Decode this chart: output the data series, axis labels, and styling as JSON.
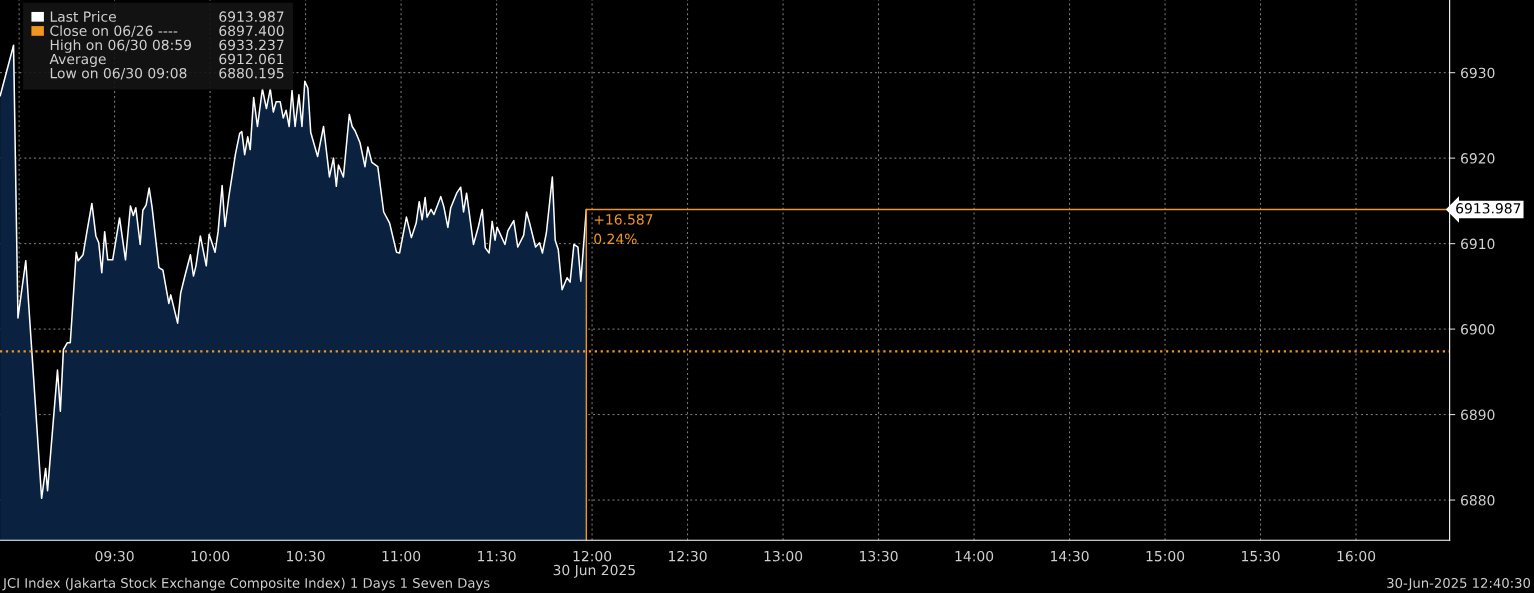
{
  "chart_data": {
    "type": "area",
    "xlabel": "30 Jun 2025",
    "x": [
      8.901,
      8.971,
      8.994,
      9.035,
      9.118,
      9.139,
      9.149,
      9.201,
      9.216,
      9.232,
      9.252,
      9.268,
      9.299,
      9.309,
      9.335,
      9.353,
      9.381,
      9.402,
      9.417,
      9.433,
      9.448,
      9.464,
      9.49,
      9.526,
      9.557,
      9.583,
      9.598,
      9.611,
      9.634,
      9.648,
      9.665,
      9.681,
      9.696,
      9.732,
      9.753,
      9.784,
      9.794,
      9.83,
      9.846,
      9.869,
      9.897,
      9.913,
      9.926,
      9.949,
      9.98,
      9.995,
      10.026,
      10.042,
      10.063,
      10.078,
      10.099,
      10.133,
      10.155,
      10.166,
      10.181,
      10.197,
      10.21,
      10.228,
      10.248,
      10.274,
      10.295,
      10.315,
      10.331,
      10.346,
      10.367,
      10.383,
      10.398,
      10.414,
      10.429,
      10.445,
      10.465,
      10.481,
      10.496,
      10.512,
      10.527,
      10.563,
      10.594,
      10.625,
      10.646,
      10.661,
      10.672,
      10.698,
      10.729,
      10.744,
      10.759,
      10.785,
      10.811,
      10.826,
      10.847,
      10.878,
      10.909,
      10.94,
      10.976,
      10.992,
      11.028,
      11.054,
      11.079,
      11.095,
      11.11,
      11.126,
      11.136,
      11.157,
      11.172,
      11.208,
      11.224,
      11.245,
      11.26,
      11.291,
      11.312,
      11.327,
      11.343,
      11.379,
      11.405,
      11.425,
      11.441,
      11.461,
      11.477,
      11.492,
      11.503,
      11.544,
      11.559,
      11.59,
      11.611,
      11.642,
      11.657,
      11.673,
      11.704,
      11.725,
      11.74,
      11.761,
      11.792,
      11.807,
      11.823,
      11.843,
      11.869,
      11.885,
      11.905,
      11.926,
      11.941,
      11.97
    ],
    "series": [
      {
        "name": "Last Price",
        "color": "#0a2240",
        "values": [
          6927.3,
          6933.2,
          6901.3,
          6908.0,
          6880.2,
          6883.7,
          6881.1,
          6895.2,
          6890.4,
          6897.6,
          6898.4,
          6898.4,
          6909.0,
          6908.0,
          6908.7,
          6911.1,
          6914.7,
          6910.9,
          6910.1,
          6906.6,
          6911.4,
          6908.1,
          6908.1,
          6913.0,
          6908.1,
          6914.4,
          6913.3,
          6914.2,
          6909.9,
          6913.9,
          6914.5,
          6916.5,
          6914.3,
          6907.2,
          6906.9,
          6903.0,
          6904.0,
          6900.7,
          6904.2,
          6906.3,
          6908.7,
          6906.2,
          6907.4,
          6910.9,
          6907.4,
          6911.1,
          6909.0,
          6911.4,
          6916.8,
          6912.0,
          6915.6,
          6920.5,
          6922.9,
          6923.1,
          6920.4,
          6922.5,
          6921.0,
          6927.1,
          6923.7,
          6928.1,
          6925.8,
          6928.1,
          6925.4,
          6926.6,
          6926.6,
          6924.7,
          6925.6,
          6923.7,
          6927.9,
          6923.7,
          6927.4,
          6923.7,
          6929.0,
          6928.2,
          6923.0,
          6920.2,
          6923.7,
          6917.8,
          6920.0,
          6916.7,
          6919.2,
          6917.8,
          6925.1,
          6923.7,
          6923.2,
          6921.8,
          6919.0,
          6921.3,
          6919.5,
          6919.0,
          6913.7,
          6912.4,
          6909.0,
          6908.9,
          6913.1,
          6910.7,
          6912.4,
          6914.9,
          6912.8,
          6915.4,
          6913.1,
          6914.0,
          6913.4,
          6915.5,
          6914.3,
          6911.9,
          6914.2,
          6915.9,
          6916.6,
          6913.7,
          6915.9,
          6909.9,
          6912.0,
          6914.0,
          6909.5,
          6908.9,
          6912.6,
          6910.4,
          6911.9,
          6909.9,
          6911.5,
          6912.7,
          6909.6,
          6911.0,
          6913.7,
          6912.4,
          6909.6,
          6910.1,
          6908.9,
          6911.3,
          6917.8,
          6910.4,
          6909.3,
          6904.6,
          6906.0,
          6905.5,
          6909.9,
          6909.6,
          6905.6,
          6914.0
        ]
      }
    ],
    "xlim": [
      8.9,
      16.49
    ],
    "xticks": [
      {
        "value": 9.0,
        "label": null
      },
      {
        "value": 9.5,
        "label": "09:30"
      },
      {
        "value": 10.0,
        "label": "10:00"
      },
      {
        "value": 10.5,
        "label": "10:30"
      },
      {
        "value": 11.0,
        "label": "11:00"
      },
      {
        "value": 11.5,
        "label": "11:30"
      },
      {
        "value": 12.0,
        "label": "12:00"
      },
      {
        "value": 12.5,
        "label": "12:30"
      },
      {
        "value": 13.0,
        "label": "13:00"
      },
      {
        "value": 13.5,
        "label": "13:30"
      },
      {
        "value": 14.0,
        "label": "14:00"
      },
      {
        "value": 14.5,
        "label": "14:30"
      },
      {
        "value": 15.0,
        "label": "15:00"
      },
      {
        "value": 15.5,
        "label": "15:30"
      },
      {
        "value": 16.0,
        "label": "16:00"
      }
    ],
    "ylim": [
      6875.3,
      6938.5
    ],
    "yticks": [
      6880,
      6890,
      6900,
      6910,
      6920,
      6930
    ],
    "grid": true,
    "legend": "top left",
    "ref_lines": [
      {
        "axis": "y",
        "value": 6897.4,
        "label": "Close on 06/26 ----",
        "color": "#f0961e",
        "line_style": "dotted"
      },
      {
        "axis": "y",
        "value": 6913.987,
        "label": "6913.987",
        "color": "#f0961e",
        "line_style": "solid"
      }
    ],
    "annotations": [
      "High on 06/30 08:59",
      "Average",
      "Low on 06/30 09:08",
      "6913.987",
      "6897.400",
      "6933.237",
      "6912.061",
      "6880.195",
      {
        "text": "+16.587",
        "x": 11.97,
        "y": 6913.987
      },
      {
        "text": "0.24%",
        "x": 11.97,
        "y": 6913.987
      },
      "JCI Index (Jakarta Stock Exchange Composite Index) 1 Days 1 Seven Days",
      "30-Jun-2025 12:40:30"
    ]
  }
}
